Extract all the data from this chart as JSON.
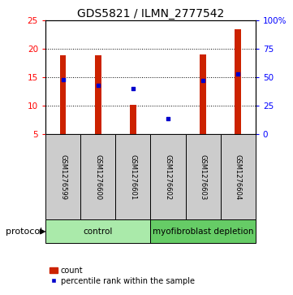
{
  "title": "GDS5821 / ILMN_2777542",
  "samples": [
    "GSM1276599",
    "GSM1276600",
    "GSM1276601",
    "GSM1276602",
    "GSM1276603",
    "GSM1276604"
  ],
  "counts": [
    18.9,
    18.9,
    10.2,
    5.0,
    19.0,
    23.5
  ],
  "percentile_ranks": [
    48,
    43,
    40,
    14,
    47,
    53
  ],
  "y_min": 5,
  "y_max": 25,
  "y_ticks": [
    5,
    10,
    15,
    20,
    25
  ],
  "y2_ticks": [
    0,
    25,
    50,
    75,
    100
  ],
  "y2_tick_labels": [
    "0",
    "25",
    "50",
    "75",
    "100%"
  ],
  "bar_color": "#CC2200",
  "dot_color": "#0000CC",
  "bar_width": 0.18,
  "groups": [
    {
      "label": "control",
      "samples": [
        0,
        1,
        2
      ],
      "color": "#AAEAAA"
    },
    {
      "label": "myofibroblast depletion",
      "samples": [
        3,
        4,
        5
      ],
      "color": "#66CC66"
    }
  ],
  "protocol_label": "protocol",
  "legend_count_label": "count",
  "legend_pct_label": "percentile rank within the sample",
  "bg_color": "#FFFFFF",
  "sample_box_color": "#CCCCCC",
  "title_fontsize": 10,
  "tick_fontsize": 7.5
}
